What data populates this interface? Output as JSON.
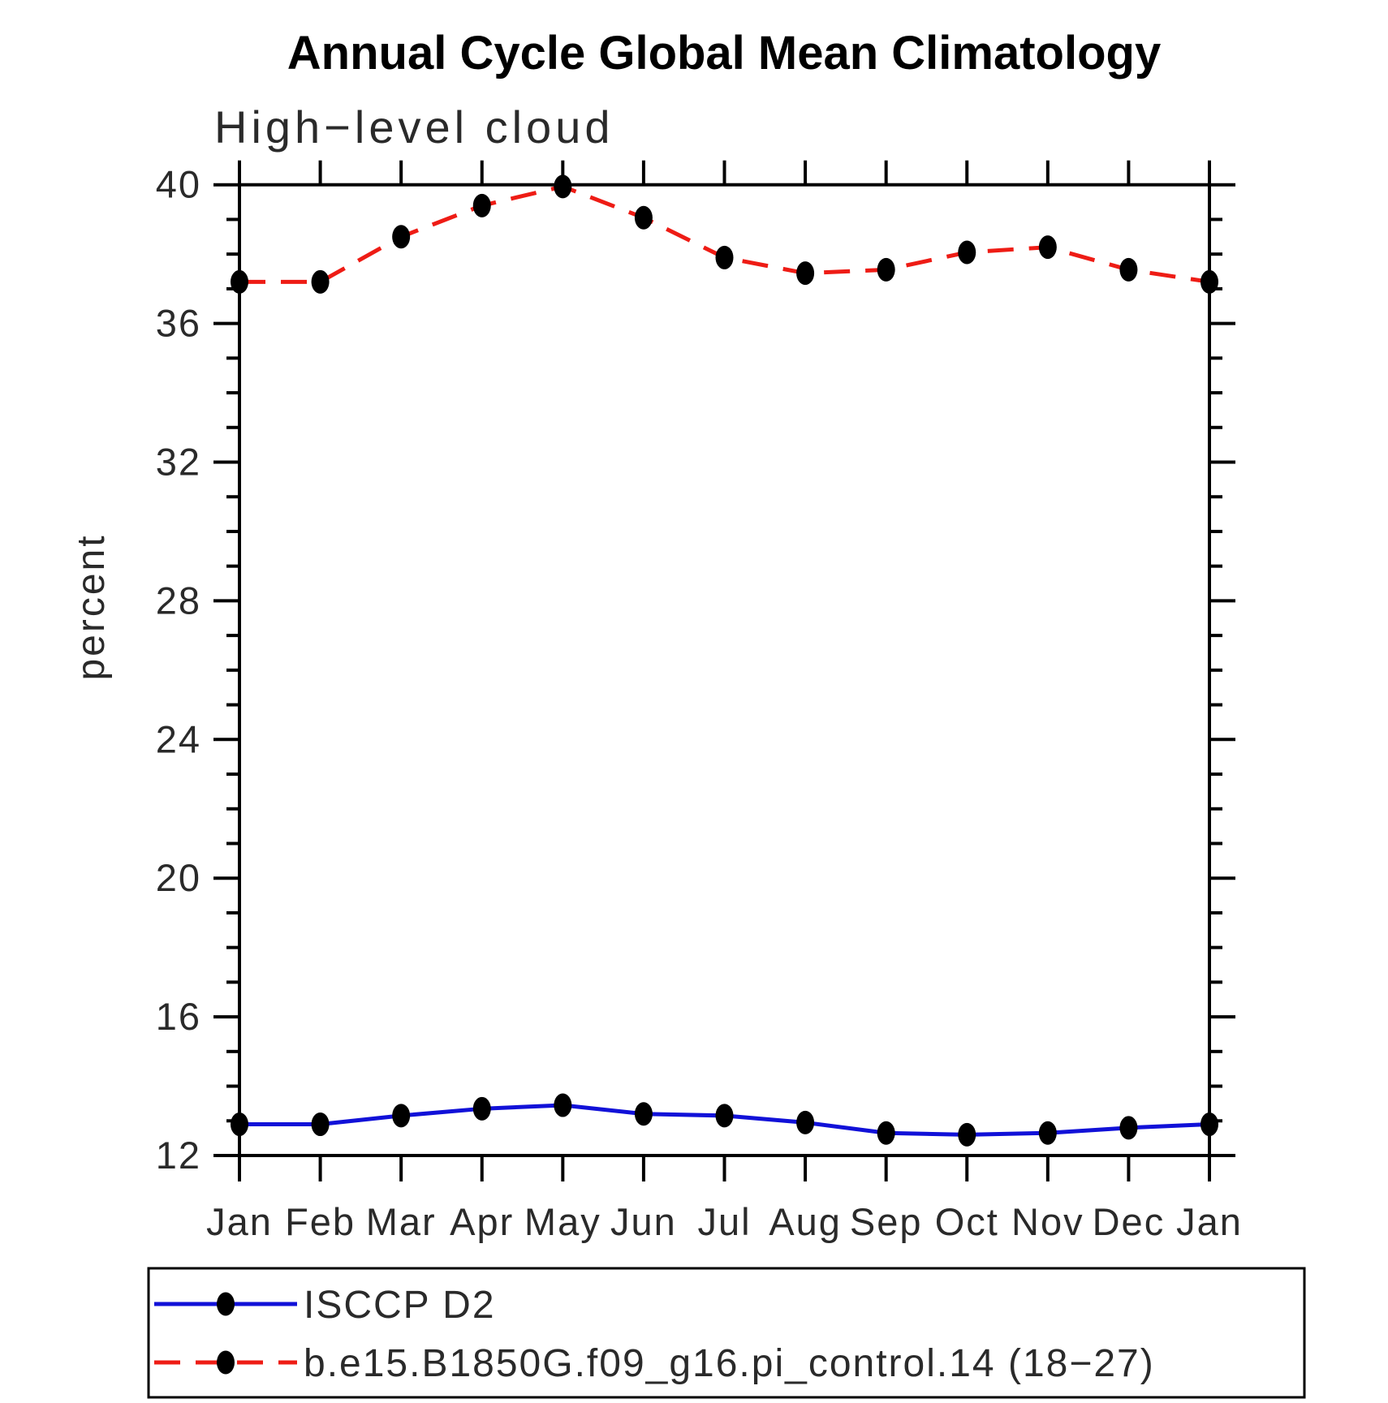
{
  "chart": {
    "title": "Annual Cycle Global Mean Climatology",
    "subtitle": "High−level cloud",
    "ylabel": "percent"
  },
  "chart_data": {
    "type": "line",
    "title": "Annual Cycle Global Mean Climatology",
    "subtitle": "High−level cloud",
    "xlabel": "",
    "ylabel": "percent",
    "categories": [
      "Jan",
      "Feb",
      "Mar",
      "Apr",
      "May",
      "Jun",
      "Jul",
      "Aug",
      "Sep",
      "Oct",
      "Nov",
      "Dec",
      "Jan"
    ],
    "ylim": [
      12,
      40
    ],
    "y_major_ticks": [
      40,
      36,
      32,
      28,
      24,
      20,
      16,
      12
    ],
    "y_minor_step": 1,
    "grid": false,
    "legend_position": "below-left in framed box",
    "series": [
      {
        "name": "ISCCP D2",
        "color": "#1111d8",
        "line_style": "solid",
        "marker": "filled-ellipse",
        "marker_color": "#000000",
        "values": [
          12.9,
          12.9,
          13.15,
          13.35,
          13.45,
          13.2,
          13.15,
          12.95,
          12.65,
          12.6,
          12.65,
          12.8,
          12.9
        ]
      },
      {
        "name": "b.e15.B1850G.f09_g16.pi_control.14 (18−27)",
        "color": "#ee1c15",
        "line_style": "dashed",
        "marker": "filled-ellipse",
        "marker_color": "#000000",
        "values": [
          37.2,
          37.2,
          38.5,
          39.4,
          39.95,
          39.05,
          37.9,
          37.45,
          37.55,
          38.05,
          38.2,
          37.55,
          37.2
        ]
      }
    ]
  },
  "legend": {
    "items": [
      {
        "label": "ISCCP D2"
      },
      {
        "label": "b.e15.B1850G.f09_g16.pi_control.14 (18−27)"
      }
    ]
  },
  "colors": {
    "background": "#ffffff",
    "axis": "#000000",
    "text": "#2a2a2a",
    "series_blue": "#1111d8",
    "series_red": "#ee1c15",
    "marker": "#000000"
  }
}
